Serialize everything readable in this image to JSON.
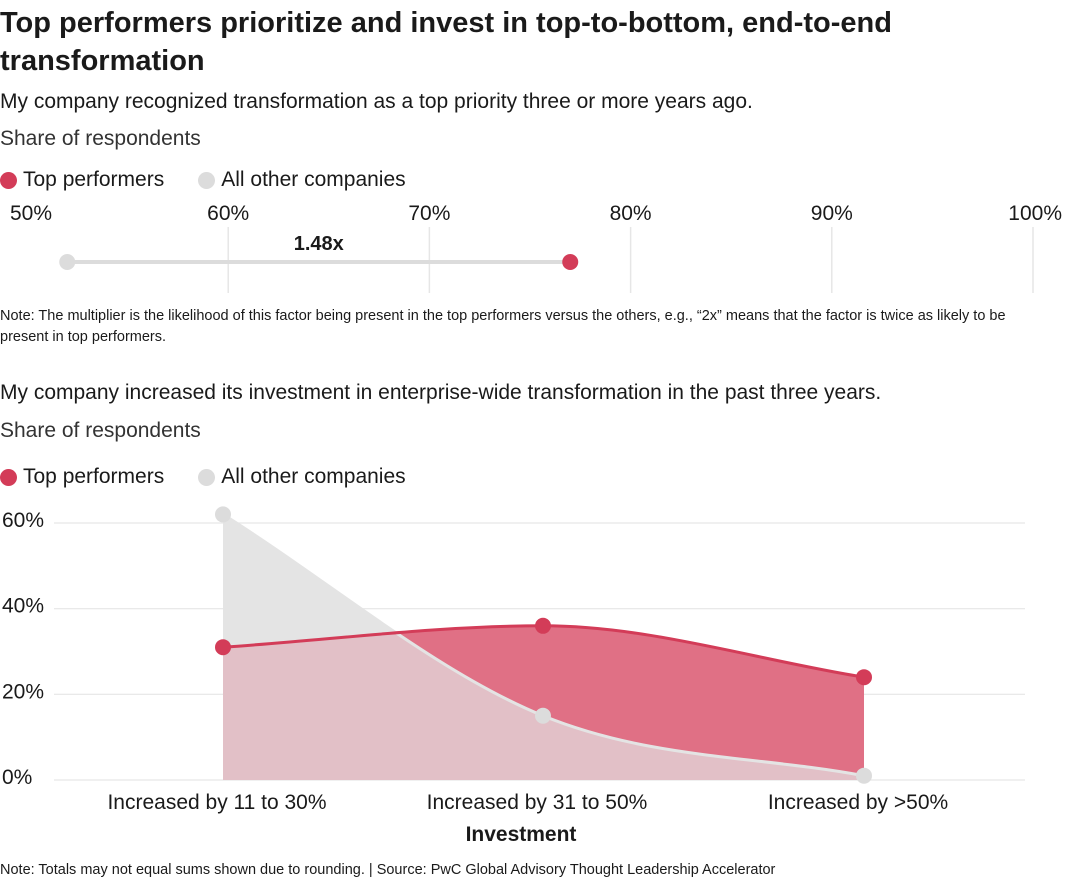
{
  "title": "Top performers prioritize and invest in top-to-bottom, end-to-end transformation",
  "colors": {
    "top": "#d33c58",
    "others": "#dcdcdc",
    "top_fill": "#e07085",
    "others_fill": "#e4e4e4",
    "overlap_fill": "#e2c0c7",
    "grid": "#e6e6e6"
  },
  "section1": {
    "question": "My company recognized transformation as a top priority three or more years ago.",
    "subtitle": "Share of respondents",
    "legend": {
      "top": "Top performers",
      "others": "All other companies"
    },
    "note": "Note: The multiplier is the likelihood of this factor being present in the top performers versus the others, e.g., “2x” means that the factor is twice as likely to be present in top performers."
  },
  "section2": {
    "question": "My company increased its investment in enterprise-wide transformation in the past three years.",
    "subtitle": "Share of respondents",
    "legend": {
      "top": "Top performers",
      "others": "All other companies"
    },
    "note": "Note: Totals may not equal sums shown due to rounding. | Source: PwC Global Advisory Thought Leadership Accelerator"
  },
  "chart_data": [
    {
      "type": "dumbbell",
      "x_ticks": [
        "50%",
        "60%",
        "70%",
        "80%",
        "90%",
        "100%"
      ],
      "xlim": [
        50,
        100
      ],
      "series": [
        {
          "name": "All other companies",
          "value": 52
        },
        {
          "name": "Top performers",
          "value": 77
        }
      ],
      "annotation": "1.48x"
    },
    {
      "type": "area",
      "categories": [
        "Increased by 11 to 30%",
        "Increased by 31 to 50%",
        "Increased by >50%"
      ],
      "xlabel": "Investment",
      "y_ticks": [
        "0%",
        "20%",
        "40%",
        "60%"
      ],
      "ylim": [
        0,
        60
      ],
      "series": [
        {
          "name": "Top performers",
          "values": [
            31,
            36,
            24
          ]
        },
        {
          "name": "All other companies",
          "values": [
            62,
            15,
            1
          ]
        }
      ]
    }
  ]
}
